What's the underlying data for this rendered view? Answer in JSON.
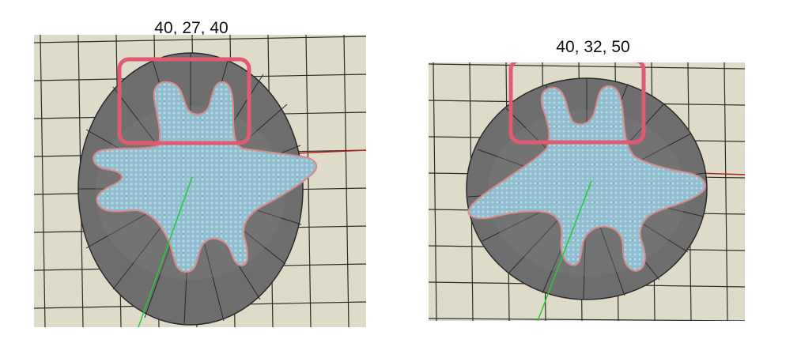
{
  "panels": [
    {
      "label": "40, 27, 40",
      "colors": {
        "grid_bg": "#dedbc8",
        "grid_line": "#2b2b2b",
        "disk": "#6e6e6e",
        "disk_spoke": "#2a2a2a",
        "mesh_fill": "#8fbdd0",
        "mesh_edge": "#d98a8a",
        "highlight_box": "#e05a72",
        "axis_green": "#22cc33",
        "axis_red": "#aa2222"
      }
    },
    {
      "label": "40, 32, 50",
      "colors": {
        "grid_bg": "#dedbc8",
        "grid_line": "#2b2b2b",
        "disk": "#6e6e6e",
        "disk_spoke": "#2a2a2a",
        "mesh_fill": "#8fbdd0",
        "mesh_edge": "#d98a8a",
        "highlight_box": "#e05a72",
        "axis_green": "#22cc33",
        "axis_red": "#aa2222"
      }
    }
  ]
}
